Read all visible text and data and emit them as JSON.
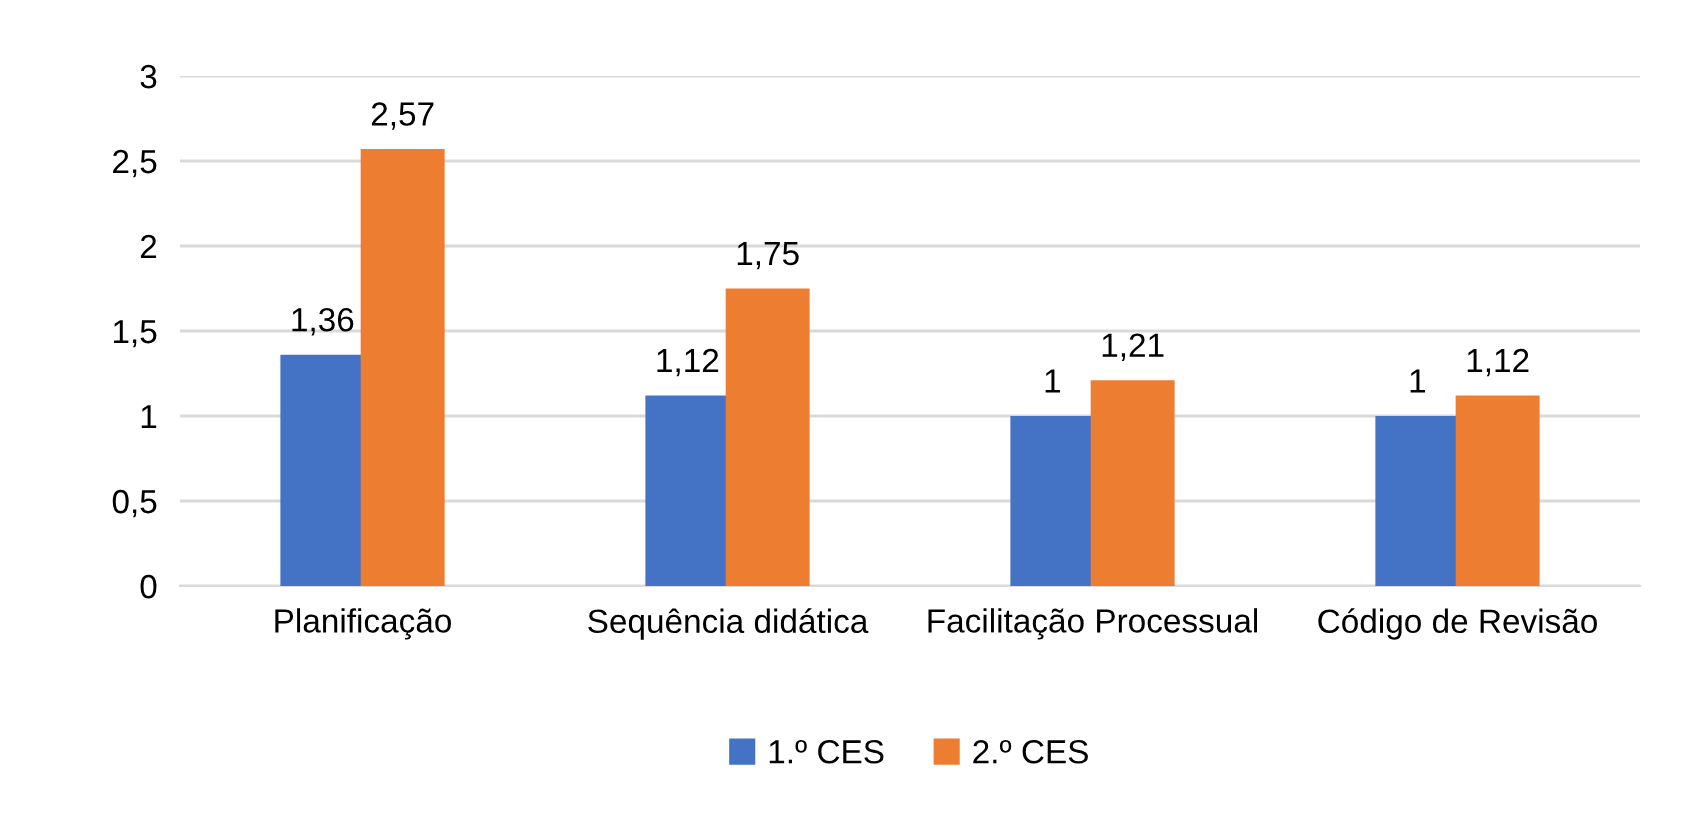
{
  "chart_data": {
    "type": "bar",
    "categories": [
      "Planificação",
      "Sequência didática",
      "Facilitação Processual",
      "Código de Revisão"
    ],
    "series": [
      {
        "name": "1.º CES",
        "color": "#4472c4",
        "values": [
          1.36,
          1.12,
          1,
          1
        ],
        "value_labels": [
          "1,36",
          "1,12",
          "1",
          "1"
        ]
      },
      {
        "name": "2.º CES",
        "color": "#ed7d31",
        "values": [
          2.57,
          1.75,
          1.21,
          1.12
        ],
        "value_labels": [
          "2,57",
          "1,75",
          "1,21",
          "1,12"
        ]
      }
    ],
    "ylim": [
      0,
      3
    ],
    "yticks": [
      0,
      {
        "value": 0.5,
        "label": "0,5"
      },
      1,
      {
        "value": 1.5,
        "label": "1,5"
      },
      2,
      {
        "value": 2.5,
        "label": "2,5"
      },
      3
    ],
    "grid": "y",
    "legend": "bottom"
  }
}
